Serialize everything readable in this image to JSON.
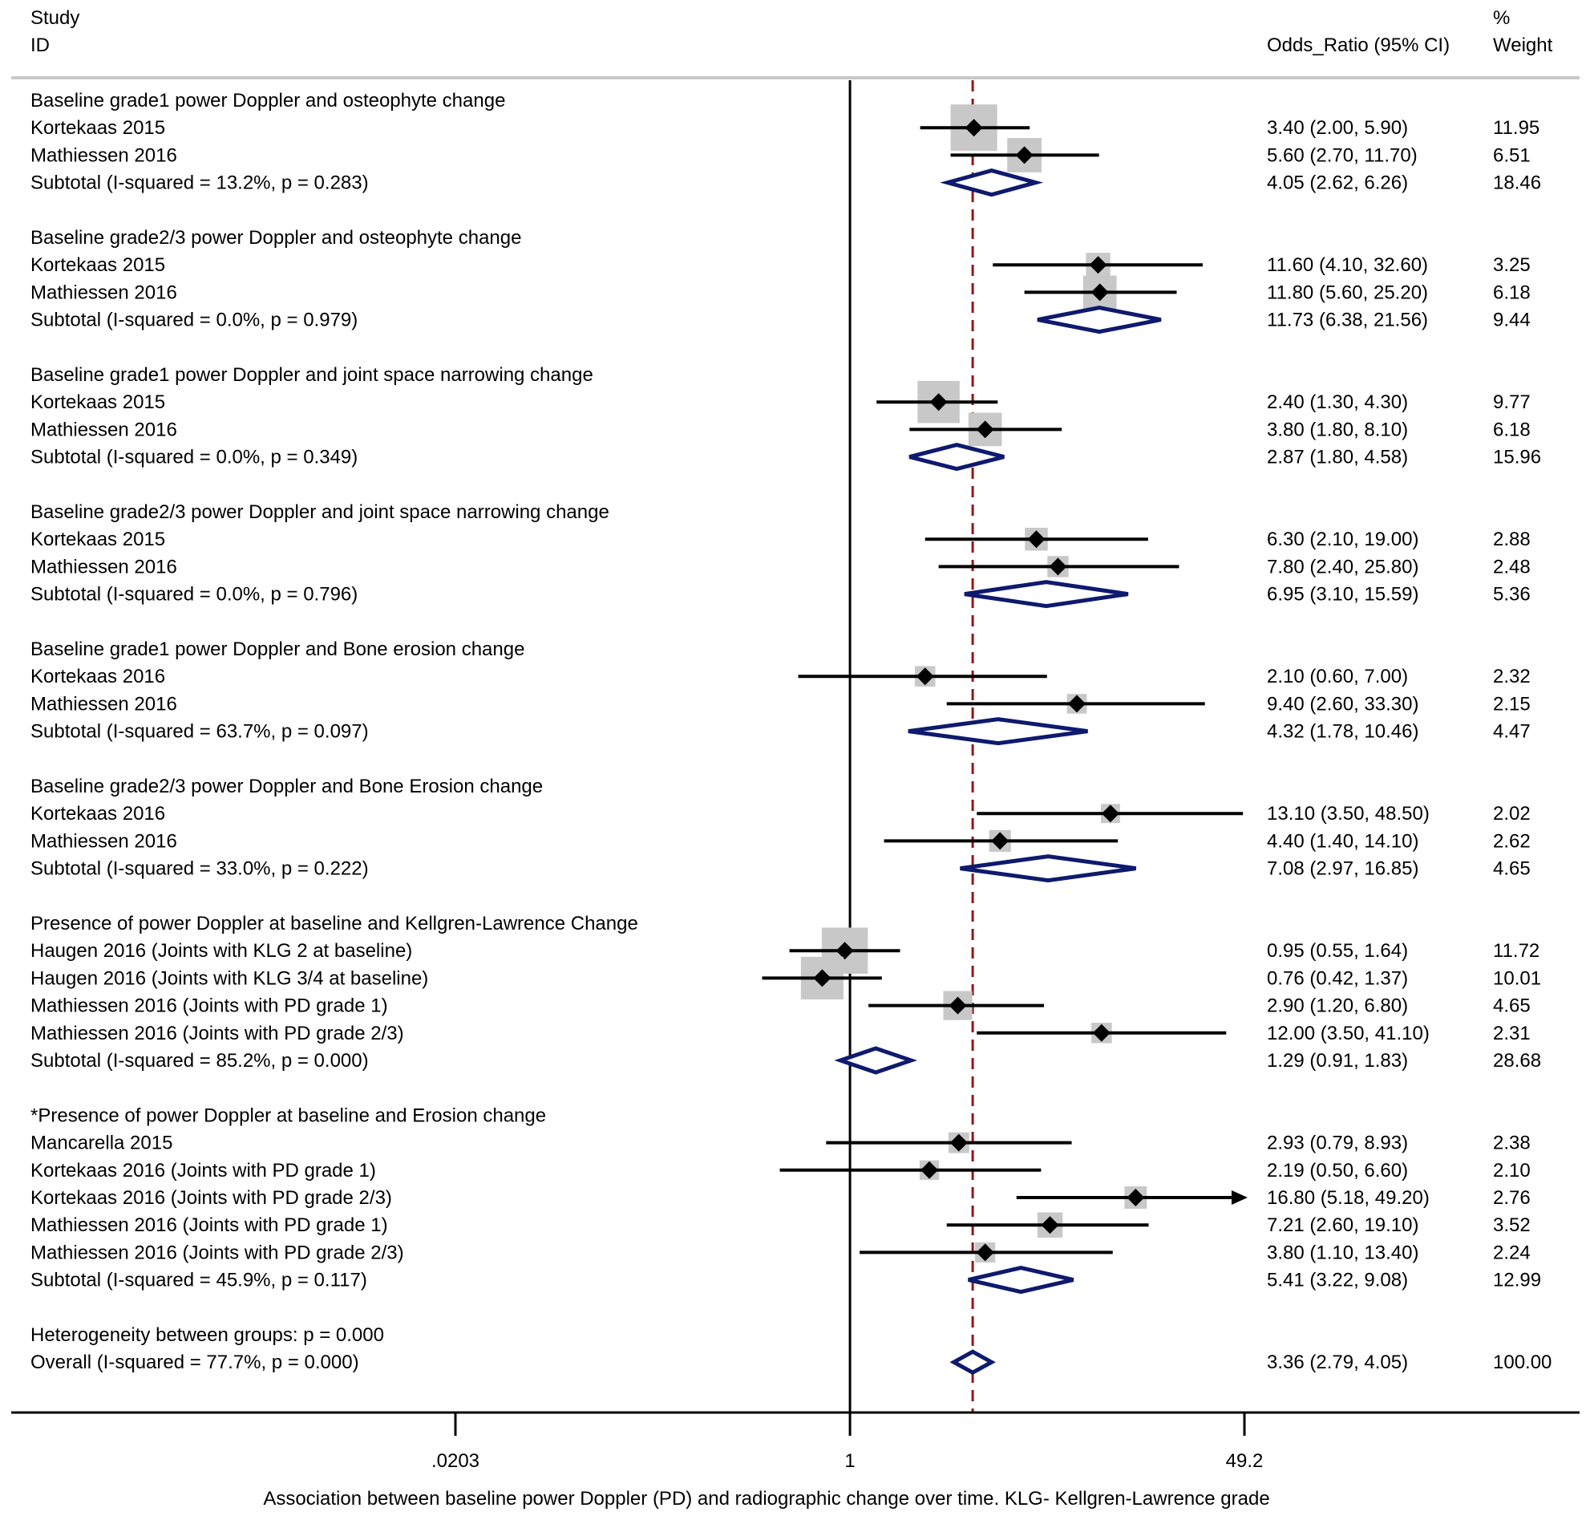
{
  "header": {
    "study_label": "Study",
    "id_label": "ID",
    "or_label": "Odds_Ratio (95% CI)",
    "pct_label": "%",
    "weight_label": "Weight"
  },
  "chart_data": {
    "type": "forest",
    "scale": "log",
    "x_ticks": [
      {
        "value": 0.0203,
        "label": ".0203"
      },
      {
        "value": 1,
        "label": "1"
      },
      {
        "value": 49.2,
        "label": "49.2"
      }
    ],
    "xlim": [
      0.0203,
      49.2
    ],
    "null_line": 1,
    "overall_line": 3.36,
    "xlabel": "Association between baseline power Doppler (PD) and radiographic change over time. KLG- Kellgren-Lawrence grade",
    "groups": [
      {
        "title": "Baseline grade1 power Doppler and osteophyte change",
        "studies": [
          {
            "label": "Kortekaas 2015",
            "or": 3.4,
            "lo": 2.0,
            "hi": 5.9,
            "text": "3.40 (2.00, 5.90)",
            "weight": "11.95"
          },
          {
            "label": "Mathiessen 2016",
            "or": 5.6,
            "lo": 2.7,
            "hi": 11.7,
            "text": "5.60 (2.70, 11.70)",
            "weight": "6.51"
          }
        ],
        "subtotal": {
          "label": "Subtotal  (I-squared = 13.2%, p = 0.283)",
          "or": 4.05,
          "lo": 2.62,
          "hi": 6.26,
          "text": "4.05 (2.62, 6.26)",
          "weight": "18.46"
        }
      },
      {
        "title": "Baseline grade2/3 power Doppler and osteophyte change",
        "studies": [
          {
            "label": "Kortekaas 2015",
            "or": 11.6,
            "lo": 4.1,
            "hi": 32.6,
            "text": "11.60 (4.10, 32.60)",
            "weight": "3.25"
          },
          {
            "label": "Mathiessen 2016",
            "or": 11.8,
            "lo": 5.6,
            "hi": 25.2,
            "text": "11.80 (5.60, 25.20)",
            "weight": "6.18"
          }
        ],
        "subtotal": {
          "label": "Subtotal  (I-squared = 0.0%, p = 0.979)",
          "or": 11.73,
          "lo": 6.38,
          "hi": 21.56,
          "text": "11.73 (6.38, 21.56)",
          "weight": "9.44"
        }
      },
      {
        "title": "Baseline grade1 power Doppler and joint space narrowing change",
        "studies": [
          {
            "label": "Kortekaas 2015",
            "or": 2.4,
            "lo": 1.3,
            "hi": 4.3,
            "text": "2.40 (1.30, 4.30)",
            "weight": "9.77"
          },
          {
            "label": "Mathiessen 2016",
            "or": 3.8,
            "lo": 1.8,
            "hi": 8.1,
            "text": "3.80 (1.80, 8.10)",
            "weight": "6.18"
          }
        ],
        "subtotal": {
          "label": "Subtotal  (I-squared = 0.0%, p = 0.349)",
          "or": 2.87,
          "lo": 1.8,
          "hi": 4.58,
          "text": "2.87 (1.80, 4.58)",
          "weight": "15.96"
        }
      },
      {
        "title": "Baseline grade2/3 power Doppler and joint space narrowing change",
        "studies": [
          {
            "label": "Kortekaas 2015",
            "or": 6.3,
            "lo": 2.1,
            "hi": 19.0,
            "text": "6.30 (2.10, 19.00)",
            "weight": "2.88"
          },
          {
            "label": "Mathiessen 2016",
            "or": 7.8,
            "lo": 2.4,
            "hi": 25.8,
            "text": "7.80 (2.40, 25.80)",
            "weight": "2.48"
          }
        ],
        "subtotal": {
          "label": "Subtotal  (I-squared = 0.0%, p = 0.796)",
          "or": 6.95,
          "lo": 3.1,
          "hi": 15.59,
          "text": "6.95 (3.10, 15.59)",
          "weight": "5.36"
        }
      },
      {
        "title": "Baseline grade1 power Doppler and Bone erosion change",
        "studies": [
          {
            "label": "Kortekaas 2016",
            "or": 2.1,
            "lo": 0.6,
            "hi": 7.0,
            "text": "2.10 (0.60, 7.00)",
            "weight": "2.32"
          },
          {
            "label": "Mathiessen 2016",
            "or": 9.4,
            "lo": 2.6,
            "hi": 33.3,
            "text": "9.40 (2.60, 33.30)",
            "weight": "2.15"
          }
        ],
        "subtotal": {
          "label": "Subtotal  (I-squared = 63.7%, p = 0.097)",
          "or": 4.32,
          "lo": 1.78,
          "hi": 10.46,
          "text": "4.32 (1.78, 10.46)",
          "weight": "4.47"
        }
      },
      {
        "title": "Baseline grade2/3 power Doppler and Bone Erosion change",
        "studies": [
          {
            "label": "Kortekaas 2016",
            "or": 13.1,
            "lo": 3.5,
            "hi": 48.5,
            "text": "13.10 (3.50, 48.50)",
            "weight": "2.02"
          },
          {
            "label": "Mathiessen 2016",
            "or": 4.4,
            "lo": 1.4,
            "hi": 14.1,
            "text": "4.40 (1.40, 14.10)",
            "weight": "2.62"
          }
        ],
        "subtotal": {
          "label": "Subtotal  (I-squared = 33.0%, p = 0.222)",
          "or": 7.08,
          "lo": 2.97,
          "hi": 16.85,
          "text": "7.08 (2.97, 16.85)",
          "weight": "4.65"
        }
      },
      {
        "title": "Presence of power Doppler at baseline and Kellgren-Lawrence Change",
        "studies": [
          {
            "label": "Haugen 2016 (Joints with KLG 2 at baseline)",
            "or": 0.95,
            "lo": 0.55,
            "hi": 1.64,
            "text": "0.95 (0.55, 1.64)",
            "weight": "11.72"
          },
          {
            "label": "Haugen 2016 (Joints with KLG 3/4 at baseline)",
            "or": 0.76,
            "lo": 0.42,
            "hi": 1.37,
            "text": "0.76 (0.42, 1.37)",
            "weight": "10.01"
          },
          {
            "label": "Mathiessen 2016 (Joints with PD grade 1)",
            "or": 2.9,
            "lo": 1.2,
            "hi": 6.8,
            "text": "2.90 (1.20, 6.80)",
            "weight": "4.65"
          },
          {
            "label": "Mathiessen 2016 (Joints with PD grade 2/3)",
            "or": 12.0,
            "lo": 3.5,
            "hi": 41.1,
            "text": "12.00 (3.50, 41.10)",
            "weight": "2.31"
          }
        ],
        "subtotal": {
          "label": "Subtotal  (I-squared = 85.2%, p = 0.000)",
          "or": 1.29,
          "lo": 0.91,
          "hi": 1.83,
          "text": "1.29 (0.91, 1.83)",
          "weight": "28.68"
        }
      },
      {
        "title": "*Presence of power Doppler at baseline and Erosion change",
        "studies": [
          {
            "label": "Mancarella 2015",
            "or": 2.93,
            "lo": 0.79,
            "hi": 8.93,
            "text": "2.93 (0.79, 8.93)",
            "weight": "2.38"
          },
          {
            "label": "Kortekaas 2016 (Joints with PD grade 1)",
            "or": 2.19,
            "lo": 0.5,
            "hi": 6.6,
            "text": "2.19 (0.50, 6.60)",
            "weight": "2.10"
          },
          {
            "label": "Kortekaas 2016 (Joints with PD grade 2/3)",
            "or": 16.8,
            "lo": 5.18,
            "hi": 49.2,
            "text": "16.80 (5.18, 49.20)",
            "weight": "2.76",
            "arrow": true
          },
          {
            "label": "Mathiessen 2016 (Joints with PD grade 1)",
            "or": 7.21,
            "lo": 2.6,
            "hi": 19.1,
            "text": "7.21 (2.60, 19.10)",
            "weight": "3.52"
          },
          {
            "label": "Mathiessen 2016 (Joints with PD grade 2/3)",
            "or": 3.8,
            "lo": 1.1,
            "hi": 13.4,
            "text": "3.80 (1.10, 13.40)",
            "weight": "2.24"
          }
        ],
        "subtotal": {
          "label": "Subtotal  (I-squared = 45.9%, p = 0.117)",
          "or": 5.41,
          "lo": 3.22,
          "hi": 9.08,
          "text": "5.41 (3.22, 9.08)",
          "weight": "12.99"
        }
      }
    ],
    "heterogeneity_text": "Heterogeneity between groups: p = 0.000",
    "overall": {
      "label": "Overall  (I-squared = 77.7%, p = 0.000)",
      "or": 3.36,
      "lo": 2.79,
      "hi": 4.05,
      "text": "3.36 (2.79, 4.05)",
      "weight": "100.00"
    },
    "colors": {
      "pooled_diamond": "#0e1a6e",
      "overall_line": "#8b1a1a",
      "weight_box": "#c8c8c8"
    }
  }
}
